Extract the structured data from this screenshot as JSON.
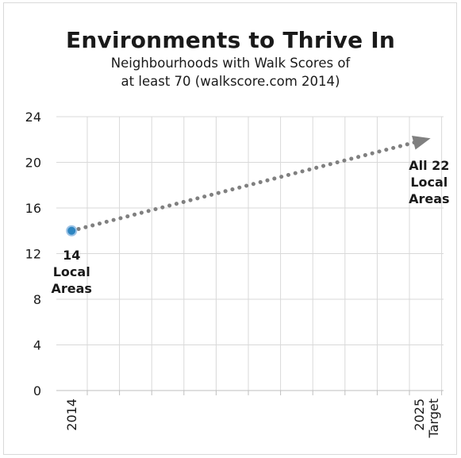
{
  "chart_data": {
    "type": "line",
    "title": "Environments to Thrive In",
    "subtitle_lines": [
      "Neighbourhoods with Walk Scores of",
      "at least 70 (walkscore.com 2014)"
    ],
    "xlabel": "",
    "ylabel": "",
    "ylim": [
      0,
      24
    ],
    "yticks": [
      0,
      4,
      8,
      12,
      16,
      20,
      24
    ],
    "grid": true,
    "x_categories": [
      "2014",
      "",
      "",
      "",
      "",
      "",
      "",
      "",
      "",
      "",
      "",
      "2025 Target"
    ],
    "x_tick_labels": [
      {
        "index": 0,
        "lines": [
          "2014"
        ]
      },
      {
        "index": 11,
        "lines": [
          "2025",
          "Target"
        ]
      }
    ],
    "series": [
      {
        "values": [
          14,
          22
        ],
        "x_index": [
          0,
          11
        ],
        "style": "dotted-arrow",
        "color": "#808080",
        "marker_color": "#2e86c1"
      }
    ],
    "annotations": [
      {
        "x_index": 0,
        "y": 14,
        "lines": [
          "14",
          "Local",
          "Areas"
        ]
      },
      {
        "x_index": 11,
        "y": 22,
        "lines": [
          "All 22",
          "Local",
          "Areas"
        ]
      }
    ]
  }
}
